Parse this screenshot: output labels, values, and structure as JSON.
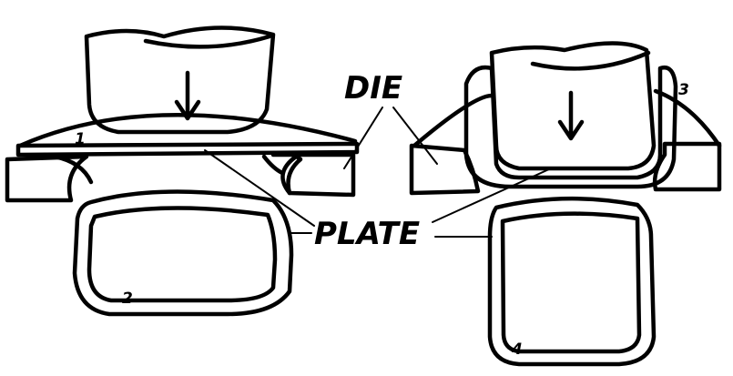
{
  "labels": {
    "die": "DIE",
    "plate": "PLATE",
    "step1": "1",
    "step2": "2",
    "step3": "3",
    "step4": "4"
  },
  "colors": {
    "ink": "#000000",
    "paper": "#ffffff"
  }
}
